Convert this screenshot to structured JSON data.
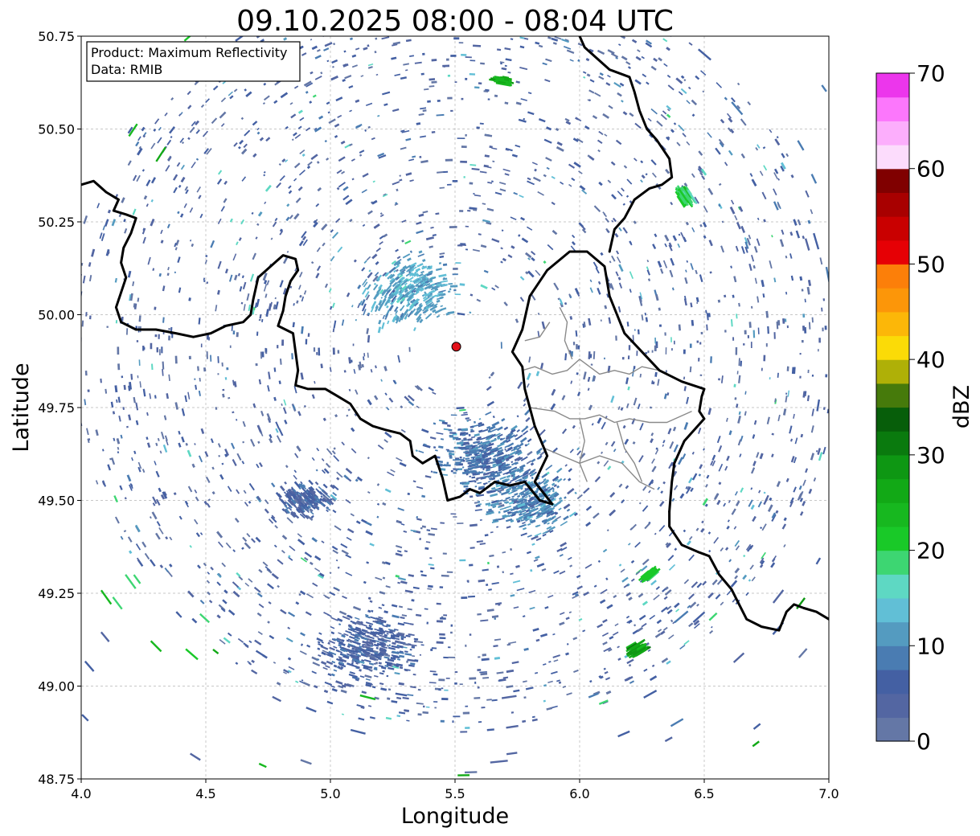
{
  "title": "09.10.2025 08:00 - 08:04 UTC",
  "info_box": {
    "product_line": "Product: Maximum Reflectivity",
    "data_line": "Data: RMIB"
  },
  "map": {
    "xlabel": "Longitude",
    "ylabel": "Latitude",
    "xlim": [
      4.0,
      7.0
    ],
    "ylim": [
      48.75,
      50.75
    ],
    "x_ticks": [
      "4.0",
      "4.5",
      "5.0",
      "5.5",
      "6.0",
      "6.5",
      "7.0"
    ],
    "y_ticks": [
      "48.75",
      "49.00",
      "49.25",
      "49.50",
      "49.75",
      "50.00",
      "50.25",
      "50.50",
      "50.75"
    ],
    "grid": true,
    "radar_site": {
      "lon": 5.505,
      "lat": 49.914,
      "color": "#e3101a"
    }
  },
  "colorbar": {
    "label": "dBZ",
    "ticks": [
      "0",
      "10",
      "20",
      "30",
      "40",
      "50",
      "60",
      "70"
    ],
    "vmin": 0,
    "vmax": 70,
    "step": 2.5,
    "colors": [
      "#6477a6",
      "#5366a2",
      "#4460a3",
      "#4a7cb2",
      "#549bc0",
      "#61bfd6",
      "#5ed8c3",
      "#3dd672",
      "#19c928",
      "#17b81f",
      "#12a916",
      "#0e9713",
      "#0a7a0e",
      "#075e0a",
      "#467a0b",
      "#afb007",
      "#fbdb07",
      "#fcb708",
      "#fc9609",
      "#fc7f09",
      "#e60005",
      "#c90000",
      "#a80000",
      "#800000",
      "#fcdcfc",
      "#fcaefc",
      "#fc77fc",
      "#ec36ec"
    ]
  },
  "chart_data": {
    "type": "heatmap",
    "title": "09.10.2025 08:00 - 08:04 UTC",
    "xlabel": "Longitude",
    "ylabel": "Latitude",
    "xlim": [
      4.0,
      7.0
    ],
    "ylim": [
      48.75,
      50.75
    ],
    "colorbar_label": "dBZ",
    "colorbar_range": [
      0,
      70
    ],
    "product": "Maximum Reflectivity",
    "data_source": "RMIB",
    "echo_clusters": [
      {
        "lon": 5.32,
        "lat": 50.06,
        "dbz": 12,
        "extent": 0.28
      },
      {
        "lon": 5.62,
        "lat": 49.62,
        "dbz": 8,
        "extent": 0.34
      },
      {
        "lon": 5.15,
        "lat": 49.1,
        "dbz": 6,
        "extent": 0.3
      },
      {
        "lon": 5.8,
        "lat": 49.5,
        "dbz": 10,
        "extent": 0.25
      },
      {
        "lon": 4.9,
        "lat": 49.5,
        "dbz": 6,
        "extent": 0.15
      },
      {
        "lon": 6.23,
        "lat": 49.1,
        "dbz": 27,
        "extent": 0.04
      },
      {
        "lon": 6.42,
        "lat": 50.32,
        "dbz": 20,
        "extent": 0.04
      },
      {
        "lon": 5.69,
        "lat": 50.63,
        "dbz": 25,
        "extent": 0.03
      },
      {
        "lon": 6.28,
        "lat": 49.3,
        "dbz": 22,
        "extent": 0.03
      }
    ],
    "borders": [
      {
        "name": "belgium-france-border",
        "coords": [
          [
            4.0,
            50.35
          ],
          [
            4.05,
            50.36
          ],
          [
            4.1,
            50.33
          ],
          [
            4.15,
            50.31
          ],
          [
            4.13,
            50.28
          ],
          [
            4.18,
            50.27
          ],
          [
            4.22,
            50.26
          ],
          [
            4.2,
            50.22
          ],
          [
            4.17,
            50.18
          ],
          [
            4.16,
            50.14
          ],
          [
            4.18,
            50.1
          ],
          [
            4.16,
            50.06
          ],
          [
            4.14,
            50.02
          ],
          [
            4.16,
            49.98
          ],
          [
            4.22,
            49.96
          ],
          [
            4.3,
            49.96
          ],
          [
            4.38,
            49.95
          ],
          [
            4.45,
            49.94
          ],
          [
            4.52,
            49.95
          ],
          [
            4.58,
            49.97
          ],
          [
            4.65,
            49.98
          ],
          [
            4.68,
            50.0
          ],
          [
            4.69,
            50.04
          ],
          [
            4.71,
            50.1
          ],
          [
            4.76,
            50.13
          ],
          [
            4.81,
            50.16
          ],
          [
            4.86,
            50.15
          ],
          [
            4.87,
            50.12
          ],
          [
            4.84,
            50.09
          ],
          [
            4.82,
            50.05
          ],
          [
            4.81,
            50.01
          ],
          [
            4.79,
            49.97
          ],
          [
            4.85,
            49.95
          ],
          [
            4.86,
            49.9
          ],
          [
            4.87,
            49.85
          ],
          [
            4.86,
            49.81
          ],
          [
            4.91,
            49.8
          ],
          [
            4.98,
            49.8
          ],
          [
            5.03,
            49.78
          ],
          [
            5.08,
            49.76
          ],
          [
            5.12,
            49.72
          ],
          [
            5.17,
            49.7
          ],
          [
            5.22,
            49.69
          ],
          [
            5.28,
            49.68
          ],
          [
            5.32,
            49.66
          ],
          [
            5.33,
            49.62
          ],
          [
            5.37,
            49.6
          ],
          [
            5.42,
            49.62
          ],
          [
            5.45,
            49.56
          ],
          [
            5.47,
            49.5
          ],
          [
            5.52,
            49.51
          ],
          [
            5.56,
            49.53
          ],
          [
            5.6,
            49.52
          ],
          [
            5.66,
            49.55
          ],
          [
            5.72,
            49.54
          ],
          [
            5.78,
            49.55
          ],
          [
            5.84,
            49.5
          ],
          [
            5.89,
            49.49
          ]
        ]
      },
      {
        "name": "luxembourg-outline",
        "coords": [
          [
            5.89,
            49.49
          ],
          [
            5.82,
            49.55
          ],
          [
            5.87,
            49.62
          ],
          [
            5.82,
            49.7
          ],
          [
            5.78,
            49.8
          ],
          [
            5.77,
            49.86
          ],
          [
            5.73,
            49.9
          ],
          [
            5.77,
            49.96
          ],
          [
            5.8,
            50.05
          ],
          [
            5.87,
            50.12
          ],
          [
            5.96,
            50.17
          ],
          [
            6.03,
            50.17
          ],
          [
            6.1,
            50.13
          ],
          [
            6.12,
            50.05
          ],
          [
            6.15,
            50.0
          ],
          [
            6.18,
            49.95
          ],
          [
            6.25,
            49.9
          ],
          [
            6.32,
            49.85
          ],
          [
            6.41,
            49.82
          ],
          [
            6.5,
            49.8
          ],
          [
            6.49,
            49.78
          ],
          [
            6.48,
            49.74
          ],
          [
            6.5,
            49.72
          ],
          [
            6.42,
            49.66
          ],
          [
            6.38,
            49.6
          ],
          [
            6.37,
            49.55
          ],
          [
            6.36,
            49.47
          ]
        ]
      },
      {
        "name": "germany-west-border",
        "coords": [
          [
            6.36,
            49.47
          ],
          [
            6.36,
            49.43
          ],
          [
            6.41,
            49.38
          ],
          [
            6.48,
            49.36
          ],
          [
            6.52,
            49.35
          ],
          [
            6.56,
            49.3
          ],
          [
            6.61,
            49.26
          ],
          [
            6.64,
            49.22
          ],
          [
            6.67,
            49.18
          ],
          [
            6.73,
            49.16
          ],
          [
            6.8,
            49.15
          ],
          [
            6.83,
            49.2
          ],
          [
            6.86,
            49.22
          ],
          [
            6.9,
            49.21
          ],
          [
            6.95,
            49.2
          ],
          [
            7.0,
            49.18
          ]
        ]
      },
      {
        "name": "belgium-germany-border",
        "coords": [
          [
            6.12,
            50.17
          ],
          [
            6.14,
            50.23
          ],
          [
            6.18,
            50.26
          ],
          [
            6.22,
            50.31
          ],
          [
            6.28,
            50.34
          ],
          [
            6.33,
            50.35
          ],
          [
            6.37,
            50.37
          ],
          [
            6.36,
            50.42
          ],
          [
            6.31,
            50.47
          ],
          [
            6.27,
            50.5
          ],
          [
            6.24,
            50.55
          ],
          [
            6.22,
            50.6
          ],
          [
            6.2,
            50.64
          ],
          [
            6.12,
            50.66
          ],
          [
            6.07,
            50.69
          ],
          [
            6.02,
            50.72
          ],
          [
            6.0,
            50.75
          ]
        ]
      }
    ],
    "regional_borders": [
      [
        [
          5.77,
          49.85
        ],
        [
          5.82,
          49.86
        ],
        [
          5.89,
          49.84
        ],
        [
          5.95,
          49.85
        ],
        [
          6.0,
          49.88
        ],
        [
          6.04,
          49.86
        ],
        [
          6.08,
          49.84
        ],
        [
          6.14,
          49.85
        ],
        [
          6.2,
          49.84
        ],
        [
          6.25,
          49.86
        ],
        [
          6.32,
          49.85
        ]
      ],
      [
        [
          5.8,
          49.75
        ],
        [
          5.9,
          49.74
        ],
        [
          5.96,
          49.72
        ],
        [
          6.02,
          49.72
        ],
        [
          6.08,
          49.73
        ],
        [
          6.14,
          49.71
        ],
        [
          6.2,
          49.72
        ],
        [
          6.28,
          49.71
        ],
        [
          6.35,
          49.71
        ],
        [
          6.45,
          49.74
        ]
      ],
      [
        [
          5.92,
          50.02
        ],
        [
          5.95,
          49.98
        ],
        [
          5.94,
          49.93
        ],
        [
          5.97,
          49.88
        ]
      ],
      [
        [
          6.0,
          49.72
        ],
        [
          6.02,
          49.66
        ],
        [
          6.0,
          49.6
        ],
        [
          6.03,
          49.55
        ]
      ],
      [
        [
          6.15,
          49.71
        ],
        [
          6.18,
          49.64
        ],
        [
          6.22,
          49.6
        ],
        [
          6.25,
          49.55
        ]
      ],
      [
        [
          5.86,
          49.64
        ],
        [
          5.93,
          49.62
        ],
        [
          6.0,
          49.6
        ],
        [
          6.08,
          49.62
        ],
        [
          6.17,
          49.6
        ],
        [
          6.24,
          49.55
        ],
        [
          6.3,
          49.53
        ]
      ],
      [
        [
          5.78,
          49.93
        ],
        [
          5.84,
          49.94
        ],
        [
          5.88,
          49.98
        ]
      ]
    ]
  }
}
